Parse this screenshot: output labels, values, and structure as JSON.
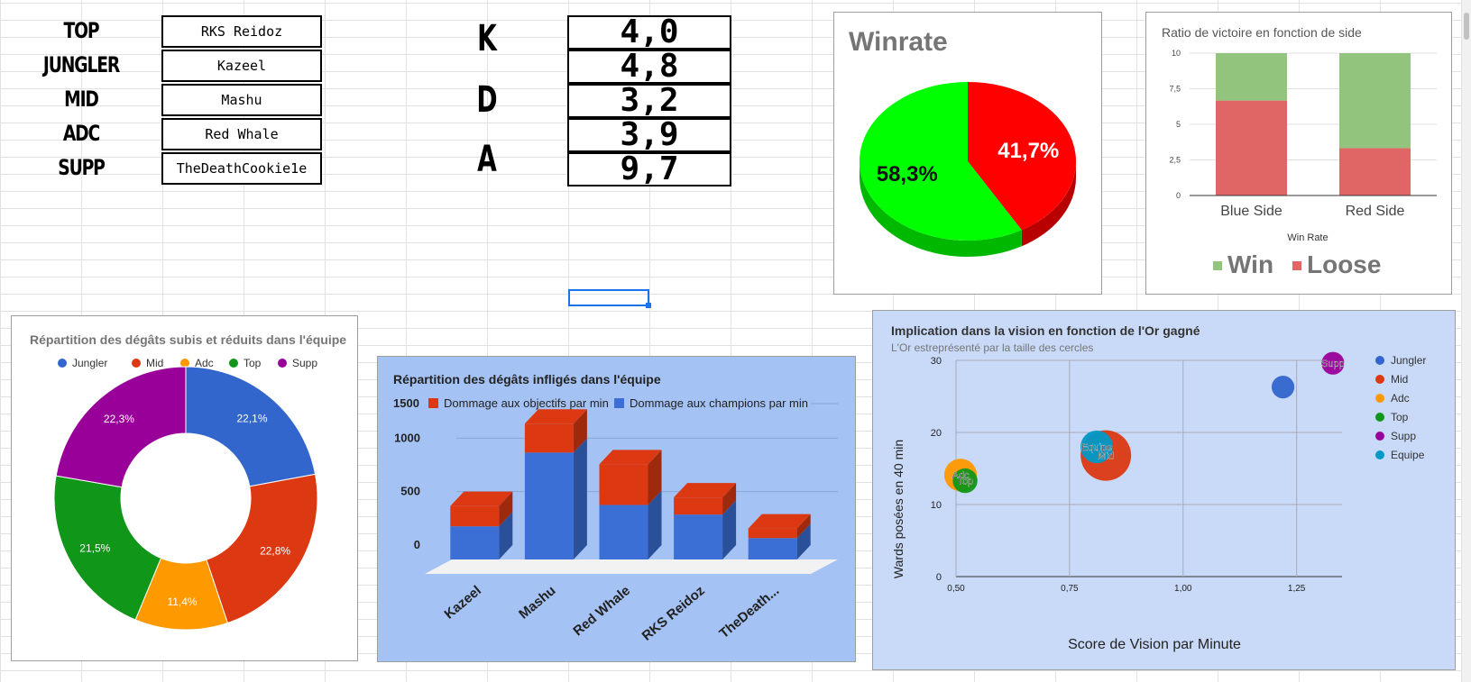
{
  "roster": [
    {
      "role": "TOP",
      "player": "RKS Reidoz"
    },
    {
      "role": "JUNGLER",
      "player": "Kazeel"
    },
    {
      "role": "MID",
      "player": "Mashu"
    },
    {
      "role": "ADC",
      "player": "Red Whale"
    },
    {
      "role": "SUPP",
      "player": "TheDeathCookie1e"
    }
  ],
  "kda": {
    "letters": [
      "K",
      "D",
      "A"
    ],
    "values": [
      "4,0",
      "4,8",
      "3,2",
      "3,9",
      "9,7"
    ]
  },
  "chart_data": [
    {
      "id": "winrate",
      "type": "pie",
      "title": "Winrate",
      "slices": [
        {
          "label": "41,7%",
          "value": 41.7,
          "color": "#ff0000"
        },
        {
          "label": "58,3%",
          "value": 58.3,
          "color": "#00ff00"
        }
      ]
    },
    {
      "id": "side",
      "type": "bar",
      "stacked": true,
      "title": "Ratio de victoire en fonction de side",
      "xlabel": "Win Rate",
      "categories": [
        "Blue Side",
        "Red Side"
      ],
      "series": [
        {
          "name": "Loose",
          "values": [
            6.67,
            3.33
          ],
          "color": "#e06666"
        },
        {
          "name": "Win",
          "values": [
            3.33,
            6.67
          ],
          "color": "#93c47d"
        }
      ],
      "legend_order": [
        "Win",
        "Loose"
      ],
      "yticks": [
        "0",
        "2,5",
        "5",
        "7,5",
        "10"
      ],
      "ylim": [
        0,
        10
      ],
      "legend": "bottom"
    },
    {
      "id": "damage_taken",
      "type": "pie",
      "donut": true,
      "title": "Répartition des dégâts subis et réduits dans l'équipe",
      "legend": "top",
      "slices": [
        {
          "name": "Jungler",
          "label": "22,1%",
          "value": 22.1,
          "color": "#3366cc"
        },
        {
          "name": "Mid",
          "label": "22,8%",
          "value": 22.8,
          "color": "#dc3912"
        },
        {
          "name": "Adc",
          "label": "11,4%",
          "value": 11.4,
          "color": "#ff9900"
        },
        {
          "name": "Top",
          "label": "21,5%",
          "value": 21.5,
          "color": "#109618"
        },
        {
          "name": "Supp",
          "label": "22,3%",
          "value": 22.3,
          "color": "#990099"
        }
      ]
    },
    {
      "id": "damage_dealt",
      "type": "bar",
      "stacked": true,
      "title": "Répartition des dégâts infligés dans l'équipe",
      "legend": "top",
      "categories": [
        "Kazeel",
        "Mashu",
        "Red Whale",
        "RKS Reidoz",
        "TheDeath..."
      ],
      "series": [
        {
          "name": "Dommage aux champions par min",
          "values": [
            310,
            1000,
            510,
            420,
            200
          ],
          "color": "#3c6fd6"
        },
        {
          "name": "Dommage aux objectifs par min",
          "values": [
            190,
            270,
            380,
            160,
            90
          ],
          "color": "#dc3912"
        }
      ],
      "yticks": [
        "0",
        "500",
        "1000",
        "1500"
      ],
      "ylim": [
        0,
        1500
      ]
    },
    {
      "id": "vision",
      "type": "scatter",
      "title": "Implication dans la vision en fonction de l'Or gagné",
      "subtitle": "L'Or estreprésenté par la taille des cercles",
      "xlabel": "Score de Vision par Minute",
      "ylabel": "Wards posées en 40 min",
      "xlim": [
        0.5,
        1.35
      ],
      "ylim": [
        0,
        30
      ],
      "xticks": [
        "0,50",
        "0,75",
        "1,00",
        "1,25"
      ],
      "yticks": [
        "0",
        "10",
        "20",
        "30"
      ],
      "legend": "right",
      "points": [
        {
          "name": "Jungler",
          "x": 1.22,
          "y": 26.3,
          "size": 0.3,
          "color": "#3366cc",
          "label": ""
        },
        {
          "name": "Mid",
          "x": 0.83,
          "y": 16.8,
          "size": 1.0,
          "color": "#dc3912",
          "label": "Mid"
        },
        {
          "name": "Adc",
          "x": 0.51,
          "y": 14.1,
          "size": 0.55,
          "color": "#ff9900",
          "label": "Adc"
        },
        {
          "name": "Top",
          "x": 0.52,
          "y": 13.3,
          "size": 0.35,
          "color": "#109618",
          "label": "Top"
        },
        {
          "name": "Supp",
          "x": 1.33,
          "y": 29.6,
          "size": 0.3,
          "color": "#990099",
          "label": "Supp"
        },
        {
          "name": "Equipe",
          "x": 0.81,
          "y": 18.0,
          "size": 0.55,
          "color": "#0099c6",
          "label": "Equipe"
        }
      ]
    }
  ]
}
